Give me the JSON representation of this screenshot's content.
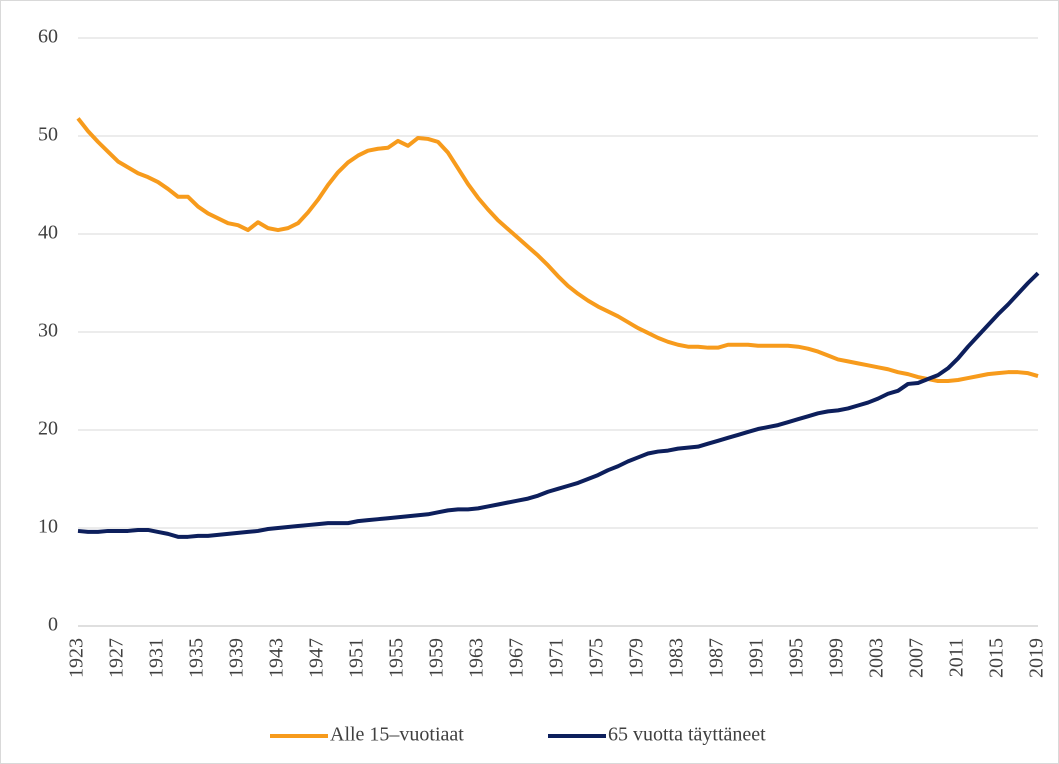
{
  "chart_data": {
    "type": "line",
    "x": [
      1923,
      1924,
      1925,
      1926,
      1927,
      1928,
      1929,
      1930,
      1931,
      1932,
      1933,
      1934,
      1935,
      1936,
      1937,
      1938,
      1939,
      1940,
      1941,
      1942,
      1943,
      1944,
      1945,
      1946,
      1947,
      1948,
      1949,
      1950,
      1951,
      1952,
      1953,
      1954,
      1955,
      1956,
      1957,
      1958,
      1959,
      1960,
      1961,
      1962,
      1963,
      1964,
      1965,
      1966,
      1967,
      1968,
      1969,
      1970,
      1971,
      1972,
      1973,
      1974,
      1975,
      1976,
      1977,
      1978,
      1979,
      1980,
      1981,
      1982,
      1983,
      1984,
      1985,
      1986,
      1987,
      1988,
      1989,
      1990,
      1991,
      1992,
      1993,
      1994,
      1995,
      1996,
      1997,
      1998,
      1999,
      2000,
      2001,
      2002,
      2003,
      2004,
      2005,
      2006,
      2007,
      2008,
      2009,
      2010,
      2011,
      2012,
      2013,
      2014,
      2015,
      2016,
      2017,
      2018,
      2019
    ],
    "series": [
      {
        "name": "Alle 15–vuotiaat",
        "color": "#f79b1c",
        "values": [
          51.8,
          50.5,
          49.4,
          48.4,
          47.4,
          46.8,
          46.2,
          45.8,
          45.3,
          44.6,
          43.8,
          43.8,
          42.8,
          42.1,
          41.6,
          41.1,
          40.9,
          40.4,
          41.2,
          40.6,
          40.4,
          40.6,
          41.1,
          42.2,
          43.5,
          45.0,
          46.3,
          47.3,
          48.0,
          48.5,
          48.7,
          48.8,
          49.5,
          49.0,
          49.8,
          49.7,
          49.4,
          48.3,
          46.7,
          45.1,
          43.7,
          42.5,
          41.4,
          40.5,
          39.6,
          38.7,
          37.8,
          36.8,
          35.7,
          34.7,
          33.9,
          33.2,
          32.6,
          32.1,
          31.6,
          31.0,
          30.4,
          29.9,
          29.4,
          29.0,
          28.7,
          28.5,
          28.5,
          28.4,
          28.4,
          28.7,
          28.7,
          28.7,
          28.6,
          28.6,
          28.6,
          28.6,
          28.5,
          28.3,
          28.0,
          27.6,
          27.2,
          27.0,
          26.8,
          26.6,
          26.4,
          26.2,
          25.9,
          25.7,
          25.4,
          25.2,
          25.0,
          25.0,
          25.1,
          25.3,
          25.5,
          25.7,
          25.8,
          25.9,
          25.9,
          25.8,
          25.5
        ]
      },
      {
        "name": "65 vuotta täyttäneet",
        "color": "#0d1f5c",
        "values": [
          9.7,
          9.6,
          9.6,
          9.7,
          9.7,
          9.7,
          9.8,
          9.8,
          9.6,
          9.4,
          9.1,
          9.1,
          9.2,
          9.2,
          9.3,
          9.4,
          9.5,
          9.6,
          9.7,
          9.9,
          10.0,
          10.1,
          10.2,
          10.3,
          10.4,
          10.5,
          10.5,
          10.5,
          10.7,
          10.8,
          10.9,
          11.0,
          11.1,
          11.2,
          11.3,
          11.4,
          11.6,
          11.8,
          11.9,
          11.9,
          12.0,
          12.2,
          12.4,
          12.6,
          12.8,
          13.0,
          13.3,
          13.7,
          14.0,
          14.3,
          14.6,
          15.0,
          15.4,
          15.9,
          16.3,
          16.8,
          17.2,
          17.6,
          17.8,
          17.9,
          18.1,
          18.2,
          18.3,
          18.6,
          18.9,
          19.2,
          19.5,
          19.8,
          20.1,
          20.3,
          20.5,
          20.8,
          21.1,
          21.4,
          21.7,
          21.9,
          22.0,
          22.2,
          22.5,
          22.8,
          23.2,
          23.7,
          24.0,
          24.7,
          24.8,
          25.2,
          25.6,
          26.3,
          27.3,
          28.5,
          29.6,
          30.7,
          31.8,
          32.8,
          33.9,
          35.0,
          36.0
        ]
      }
    ],
    "xlim": [
      1923,
      2019
    ],
    "xticks": [
      1923,
      1927,
      1931,
      1935,
      1939,
      1943,
      1947,
      1951,
      1955,
      1959,
      1963,
      1967,
      1971,
      1975,
      1979,
      1983,
      1987,
      1991,
      1995,
      1999,
      2003,
      2007,
      2011,
      2015,
      2019
    ],
    "ylim": [
      0,
      60
    ],
    "yticks": [
      0,
      10,
      20,
      30,
      40,
      50,
      60
    ],
    "grid": true,
    "legend": "bottom"
  }
}
